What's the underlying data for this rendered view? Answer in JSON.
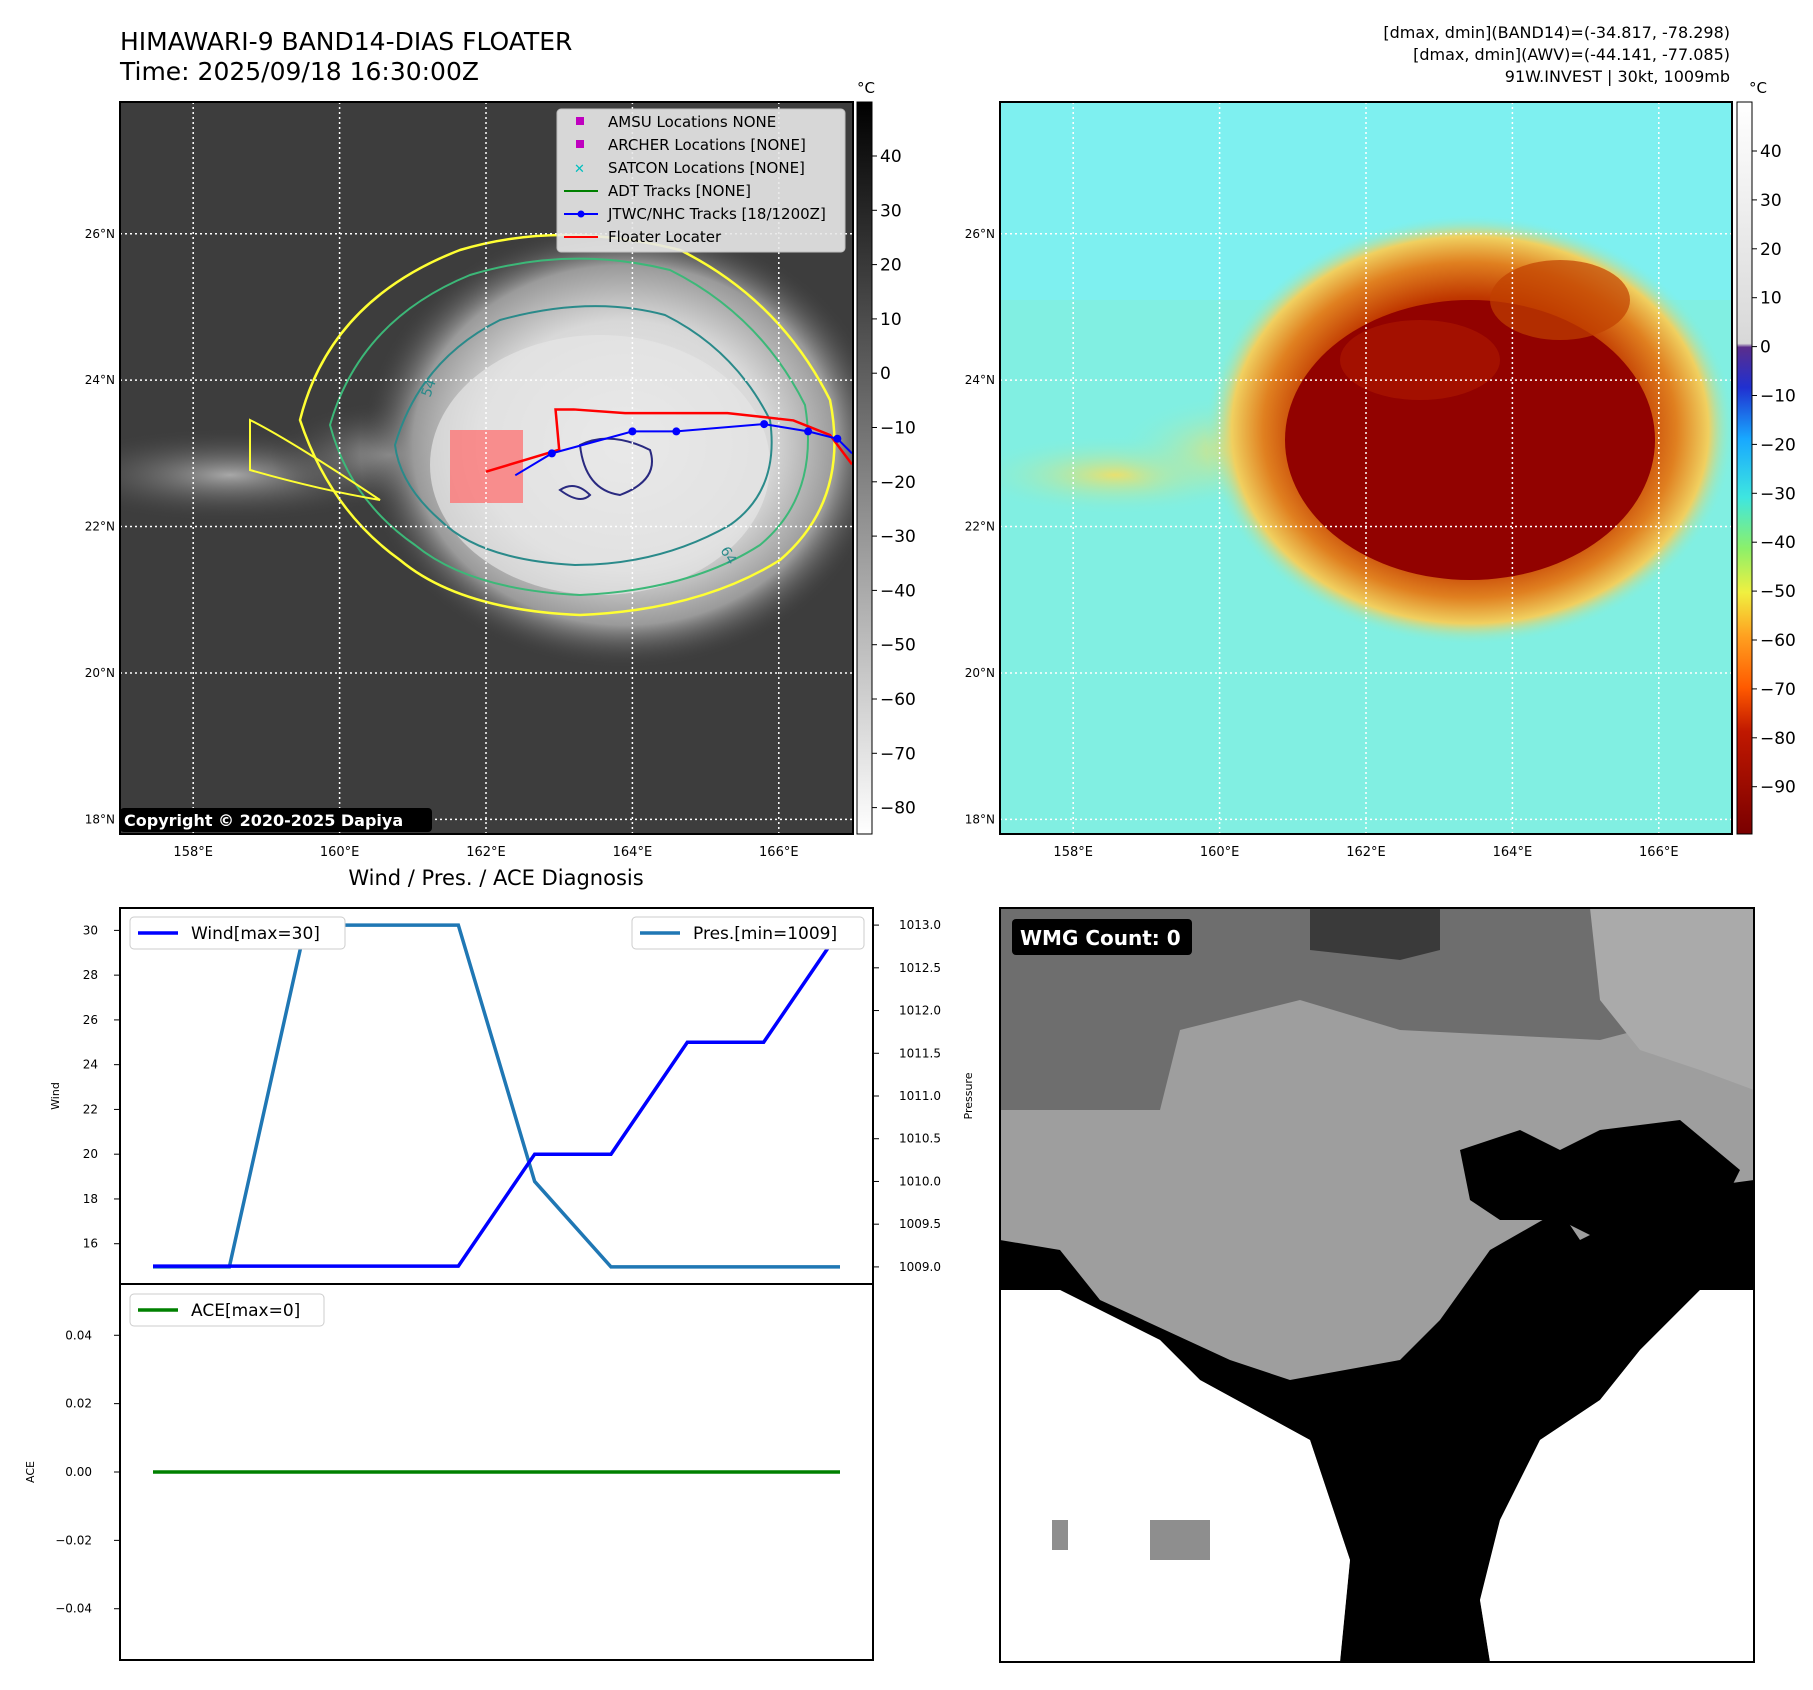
{
  "header": {
    "title_line1": "HIMAWARI-9 BAND14-DIAS FLOATER",
    "title_line2": "Time: 2025/09/18 16:30:00Z",
    "info_line1": "[dmax, dmin](BAND14)=(-34.817, -78.298)",
    "info_line2": "[dmax, dmin](AWV)=(-44.141, -77.085)",
    "info_line3": "91W.INVEST | 30kt, 1009mb"
  },
  "map": {
    "lon_ticks": [
      "158°E",
      "160°E",
      "162°E",
      "164°E",
      "166°E"
    ],
    "lat_ticks": [
      "26°N",
      "24°N",
      "22°N",
      "20°N",
      "18°N"
    ],
    "copyright": "Copyright © 2020-2025 Dapiya",
    "legend": [
      {
        "label": "AMSU Locations NONE",
        "marker": "square",
        "color": "#bf00bf"
      },
      {
        "label": "ARCHER Locations [NONE]",
        "marker": "square",
        "color": "#bf00bf"
      },
      {
        "label": "SATCON Locations [NONE]",
        "marker": "x",
        "color": "#00bfbf"
      },
      {
        "label": "ADT Tracks [NONE]",
        "marker": "line",
        "color": "#008000"
      },
      {
        "label": "JTWC/NHC Tracks [18/1200Z]",
        "marker": "line-dot",
        "color": "#0000ff"
      },
      {
        "label": "Floater Locater",
        "marker": "line",
        "color": "#ff0000"
      }
    ],
    "contour_labels": [
      "54",
      "64"
    ],
    "jtwc_track": {
      "lon": [
        162.4,
        162.9,
        164.0,
        164.6,
        165.8,
        166.4,
        166.8,
        167.0
      ],
      "lat": [
        22.7,
        23.0,
        23.3,
        23.3,
        23.4,
        23.3,
        23.2,
        23.0
      ]
    },
    "floater_track": {
      "lon": [
        162.0,
        163.0,
        162.95,
        163.2,
        163.9,
        165.3,
        166.2,
        166.7,
        167.0
      ],
      "lat": [
        22.75,
        23.05,
        23.6,
        23.6,
        23.55,
        23.55,
        23.45,
        23.25,
        22.85
      ]
    }
  },
  "colorbar_bw": {
    "unit": "°C",
    "ticks": [
      "40",
      "30",
      "20",
      "10",
      "0",
      "−10",
      "−20",
      "−30",
      "−40",
      "−50",
      "−60",
      "−70",
      "−80"
    ]
  },
  "colorbar_color": {
    "unit": "°C",
    "ticks": [
      "40",
      "30",
      "20",
      "10",
      "0",
      "−10",
      "−20",
      "−30",
      "−40",
      "−50",
      "−60",
      "−70",
      "−80",
      "−90"
    ]
  },
  "diagnosis": {
    "title": "Wind / Pres. / ACE Diagnosis",
    "wind_ylabel": "Wind",
    "pressure_ylabel": "Pressure",
    "ace_ylabel": "ACE",
    "wind_legend": "Wind[max=30]",
    "pres_legend": "Pres.[min=1009]",
    "ace_legend": "ACE[max=0]"
  },
  "wmg": {
    "label": "WMG Count: 0"
  },
  "chart_data": [
    {
      "type": "line",
      "title": "Wind / Pres. / ACE Diagnosis",
      "x": [
        0,
        1,
        2,
        3,
        4,
        5,
        6,
        7,
        8,
        9
      ],
      "series": [
        {
          "name": "Wind[max=30]",
          "axis": "left",
          "color": "#0000ff",
          "values": [
            15,
            15,
            15,
            15,
            15,
            20,
            20,
            25,
            25,
            30
          ]
        },
        {
          "name": "Pres.[min=1009]",
          "axis": "right",
          "color": "#1f77b4",
          "values": [
            1009,
            1009,
            1013,
            1013,
            1013,
            1010,
            1009,
            1009,
            1009,
            1009
          ]
        }
      ],
      "ylabel": "Wind",
      "ylim": [
        14.2,
        31
      ],
      "y2label": "Pressure",
      "y2lim": [
        1008.8,
        1013.2
      ],
      "yticks": [
        16,
        18,
        20,
        22,
        24,
        26,
        28,
        30
      ],
      "y2ticks": [
        "1009.0",
        "1009.5",
        "1010.0",
        "1010.5",
        "1011.0",
        "1011.5",
        "1012.0",
        "1012.5",
        "1013.0"
      ]
    },
    {
      "type": "line",
      "x": [
        0,
        1,
        2,
        3,
        4,
        5,
        6,
        7,
        8,
        9
      ],
      "series": [
        {
          "name": "ACE[max=0]",
          "color": "#008000",
          "values": [
            0,
            0,
            0,
            0,
            0,
            0,
            0,
            0,
            0,
            0
          ]
        }
      ],
      "ylabel": "ACE",
      "ylim": [
        -0.055,
        0.055
      ],
      "yticks": [
        "0.04",
        "0.02",
        "0.00",
        "−0.02",
        "−0.04"
      ]
    }
  ]
}
